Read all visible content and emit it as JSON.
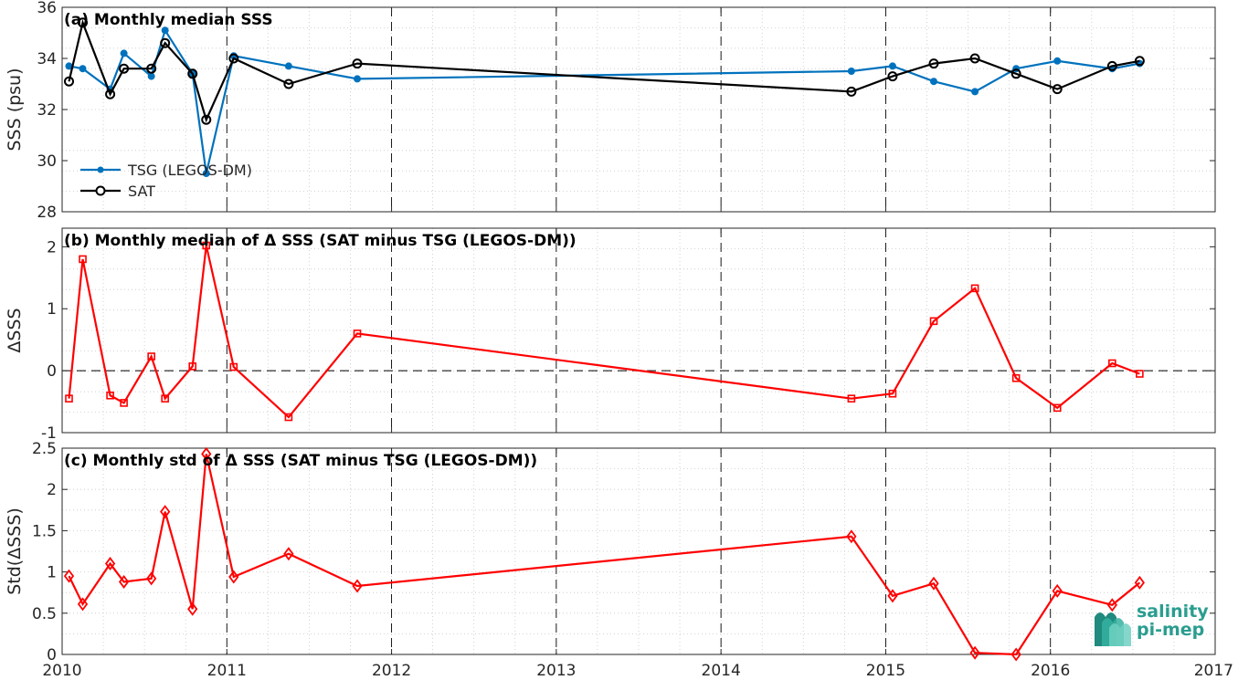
{
  "x_axis": {
    "ticks": [
      "2010",
      "2011",
      "2012",
      "2013",
      "2014",
      "2015",
      "2016",
      "2017"
    ],
    "range": [
      2010,
      2017
    ],
    "dashed_year_lines": [
      2011,
      2012,
      2013,
      2014,
      2015,
      2016
    ]
  },
  "colors": {
    "tsg": "#0072BD",
    "sat": "#000000",
    "delta": "#FF0000",
    "logo": "#2a9d8f"
  },
  "logo": {
    "line1": "salinity",
    "line2": "pi-mep"
  },
  "chart_data": [
    {
      "type": "line",
      "title": "(a) Monthly median SSS",
      "ylabel": "SSS (psu)",
      "ylim": [
        28,
        36
      ],
      "yticks": [
        "28",
        "30",
        "32",
        "34",
        "36"
      ],
      "grid": true,
      "legend": "bottom-left",
      "series": [
        {
          "name": "TSG (LEGOS-DM)",
          "marker": "dot",
          "x": [
            "2010-01",
            "2010-02",
            "2010-04",
            "2010-05",
            "2010-07",
            "2010-08",
            "2010-10",
            "2010-11",
            "2011-01",
            "2011-05",
            "2011-10",
            "2014-10",
            "2015-01",
            "2015-04",
            "2015-07",
            "2015-10",
            "2016-01",
            "2016-05",
            "2016-07"
          ],
          "values": [
            33.7,
            33.6,
            32.8,
            34.2,
            33.3,
            35.1,
            33.4,
            29.5,
            34.1,
            33.7,
            33.2,
            33.5,
            33.7,
            33.1,
            32.7,
            33.6,
            33.9,
            33.6,
            33.8
          ]
        },
        {
          "name": "SAT",
          "marker": "circle",
          "x": [
            "2010-01",
            "2010-02",
            "2010-04",
            "2010-05",
            "2010-07",
            "2010-08",
            "2010-10",
            "2010-11",
            "2011-01",
            "2011-05",
            "2011-10",
            "2014-10",
            "2015-01",
            "2015-04",
            "2015-07",
            "2015-10",
            "2016-01",
            "2016-05",
            "2016-07"
          ],
          "values": [
            33.1,
            35.4,
            32.6,
            33.6,
            33.6,
            34.6,
            33.4,
            31.6,
            34.0,
            33.0,
            33.8,
            32.7,
            33.3,
            33.8,
            34.0,
            33.4,
            32.8,
            33.7,
            33.9
          ]
        }
      ]
    },
    {
      "type": "line",
      "title": "(b) Monthly median of Δ SSS (SAT minus TSG (LEGOS-DM))",
      "ylabel": "ΔSSS",
      "ylim": [
        -1,
        2.3
      ],
      "yticks": [
        "-1",
        "0",
        "1",
        "2"
      ],
      "grid": true,
      "zero_line": "dashed",
      "series": [
        {
          "marker": "square",
          "x": [
            "2010-01",
            "2010-02",
            "2010-04",
            "2010-05",
            "2010-07",
            "2010-08",
            "2010-10",
            "2010-11",
            "2011-01",
            "2011-05",
            "2011-10",
            "2014-10",
            "2015-01",
            "2015-04",
            "2015-07",
            "2015-10",
            "2016-01",
            "2016-05",
            "2016-07"
          ],
          "values": [
            -0.45,
            1.8,
            -0.4,
            -0.52,
            0.23,
            -0.45,
            0.07,
            2.02,
            0.06,
            -0.75,
            0.6,
            -0.45,
            -0.37,
            0.8,
            1.33,
            -0.12,
            -0.6,
            0.12,
            -0.05
          ]
        }
      ]
    },
    {
      "type": "line",
      "title": "(c) Monthly std of Δ SSS (SAT minus TSG (LEGOS-DM))",
      "ylabel": "Std(ΔSSS)",
      "ylim": [
        0,
        2.5
      ],
      "yticks": [
        "0",
        "0.5",
        "1",
        "1.5",
        "2",
        "2.5"
      ],
      "grid": true,
      "series": [
        {
          "marker": "diamond",
          "x": [
            "2010-01",
            "2010-02",
            "2010-04",
            "2010-05",
            "2010-07",
            "2010-08",
            "2010-10",
            "2010-11",
            "2011-01",
            "2011-05",
            "2011-10",
            "2014-10",
            "2015-01",
            "2015-04",
            "2015-07",
            "2015-10",
            "2016-01",
            "2016-05",
            "2016-07"
          ],
          "values": [
            0.95,
            0.61,
            1.1,
            0.88,
            0.92,
            1.73,
            0.55,
            2.43,
            0.94,
            1.22,
            0.83,
            1.43,
            0.71,
            0.86,
            0.02,
            0.0,
            0.77,
            0.6,
            0.87
          ]
        }
      ]
    }
  ]
}
